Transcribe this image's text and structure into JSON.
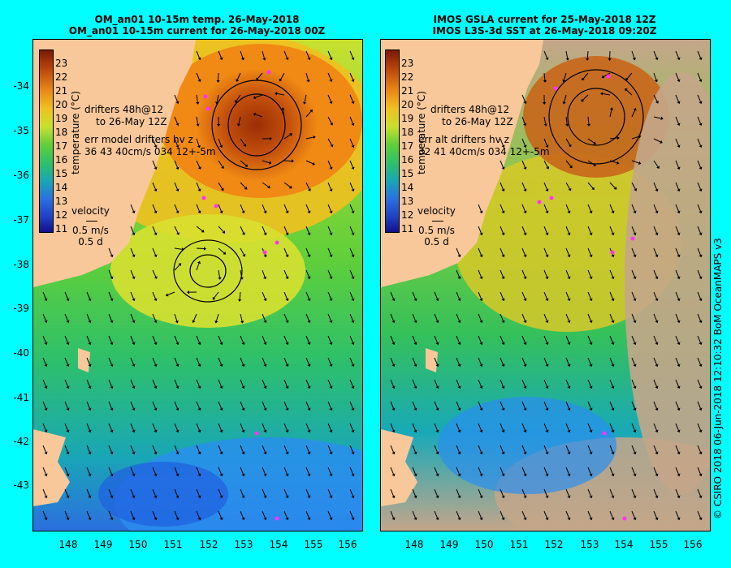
{
  "left": {
    "title_line1": "OM_an01 10-15m temp. 26-May-2018",
    "title_line2": "OM_an01 10-15m current for 26-May-2018 00Z",
    "legend_line1": "drifters 48h@12",
    "legend_line2": "to 26-May 12Z",
    "err_line1": "err model drifters hv z",
    "err_line2": "36 43 40cm/s 034 12+-5m"
  },
  "right": {
    "title_line1": "IMOS GSLA current for 25-May-2018 12Z",
    "title_line2": "IMOS L3S-3d SST at 26-May-2018 09:20Z",
    "legend_line1": "drifters 48h@12",
    "legend_line2": "to 26-May 12Z",
    "err_line1": "err alt drifters hv z",
    "err_line2": "32 41 40cm/s 034 12+-5m"
  },
  "colorbar": {
    "title": "temperature (°C)",
    "ticks": [
      "23",
      "22",
      "21",
      "20",
      "19",
      "18",
      "17",
      "16",
      "15",
      "14",
      "13",
      "12",
      "11"
    ]
  },
  "velocity": {
    "label": "velocity",
    "speed": "0.5 m/s",
    "duration": "0.5 d"
  },
  "y_ticks": [
    "-34",
    "-35",
    "-36",
    "-37",
    "-38",
    "-39",
    "-40",
    "-41",
    "-42",
    "-43"
  ],
  "x_ticks": [
    "148",
    "149",
    "150",
    "151",
    "152",
    "153",
    "154",
    "155",
    "156"
  ],
  "credit": "© CSIRO 2018   06-Jun-2018 12:10:32 BoM OceanMAPS v3",
  "colors": {
    "background": "#00ffff",
    "land": "#f9c89a",
    "land_obscured": "#c4a68a",
    "drifter": "#ff33ff"
  }
}
